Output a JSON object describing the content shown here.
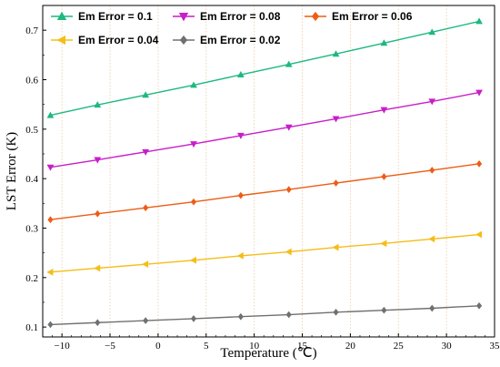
{
  "chart_data": {
    "type": "line",
    "xlabel": "Temperature (℃)",
    "ylabel": "LST Error (K)",
    "xlim": [
      -12,
      35
    ],
    "ylim": [
      0.08,
      0.75
    ],
    "xticks": [
      -10,
      -5,
      0,
      5,
      10,
      15,
      20,
      25,
      30,
      35
    ],
    "yticks": [
      0.1,
      0.2,
      0.3,
      0.4,
      0.5,
      0.6,
      0.7
    ],
    "grid": "vertical dotted lines at x ticks",
    "legend_position": "top",
    "x": [
      -11.2,
      -6.3,
      -1.3,
      3.7,
      8.6,
      13.6,
      18.5,
      23.5,
      28.5,
      33.4
    ],
    "series": [
      {
        "name": "Em Error = 0.1",
        "color": "#1db97f",
        "marker": "triangle-up",
        "values": [
          0.528,
          0.549,
          0.569,
          0.589,
          0.61,
          0.631,
          0.652,
          0.674,
          0.696,
          0.718
        ]
      },
      {
        "name": "Em Error = 0.08",
        "color": "#c81ec8",
        "marker": "triangle-down",
        "values": [
          0.423,
          0.438,
          0.454,
          0.47,
          0.487,
          0.504,
          0.521,
          0.539,
          0.556,
          0.574
        ]
      },
      {
        "name": "Em Error = 0.06",
        "color": "#ee5c14",
        "marker": "diamond",
        "values": [
          0.317,
          0.329,
          0.341,
          0.353,
          0.366,
          0.378,
          0.391,
          0.404,
          0.417,
          0.43
        ]
      },
      {
        "name": "Em Error = 0.04",
        "color": "#f5bd17",
        "marker": "triangle-left",
        "values": [
          0.211,
          0.219,
          0.227,
          0.235,
          0.244,
          0.252,
          0.261,
          0.269,
          0.278,
          0.287
        ]
      },
      {
        "name": "Em Error = 0.02",
        "color": "#707070",
        "marker": "diamond",
        "values": [
          0.105,
          0.109,
          0.113,
          0.117,
          0.121,
          0.125,
          0.13,
          0.134,
          0.138,
          0.143
        ]
      }
    ]
  }
}
